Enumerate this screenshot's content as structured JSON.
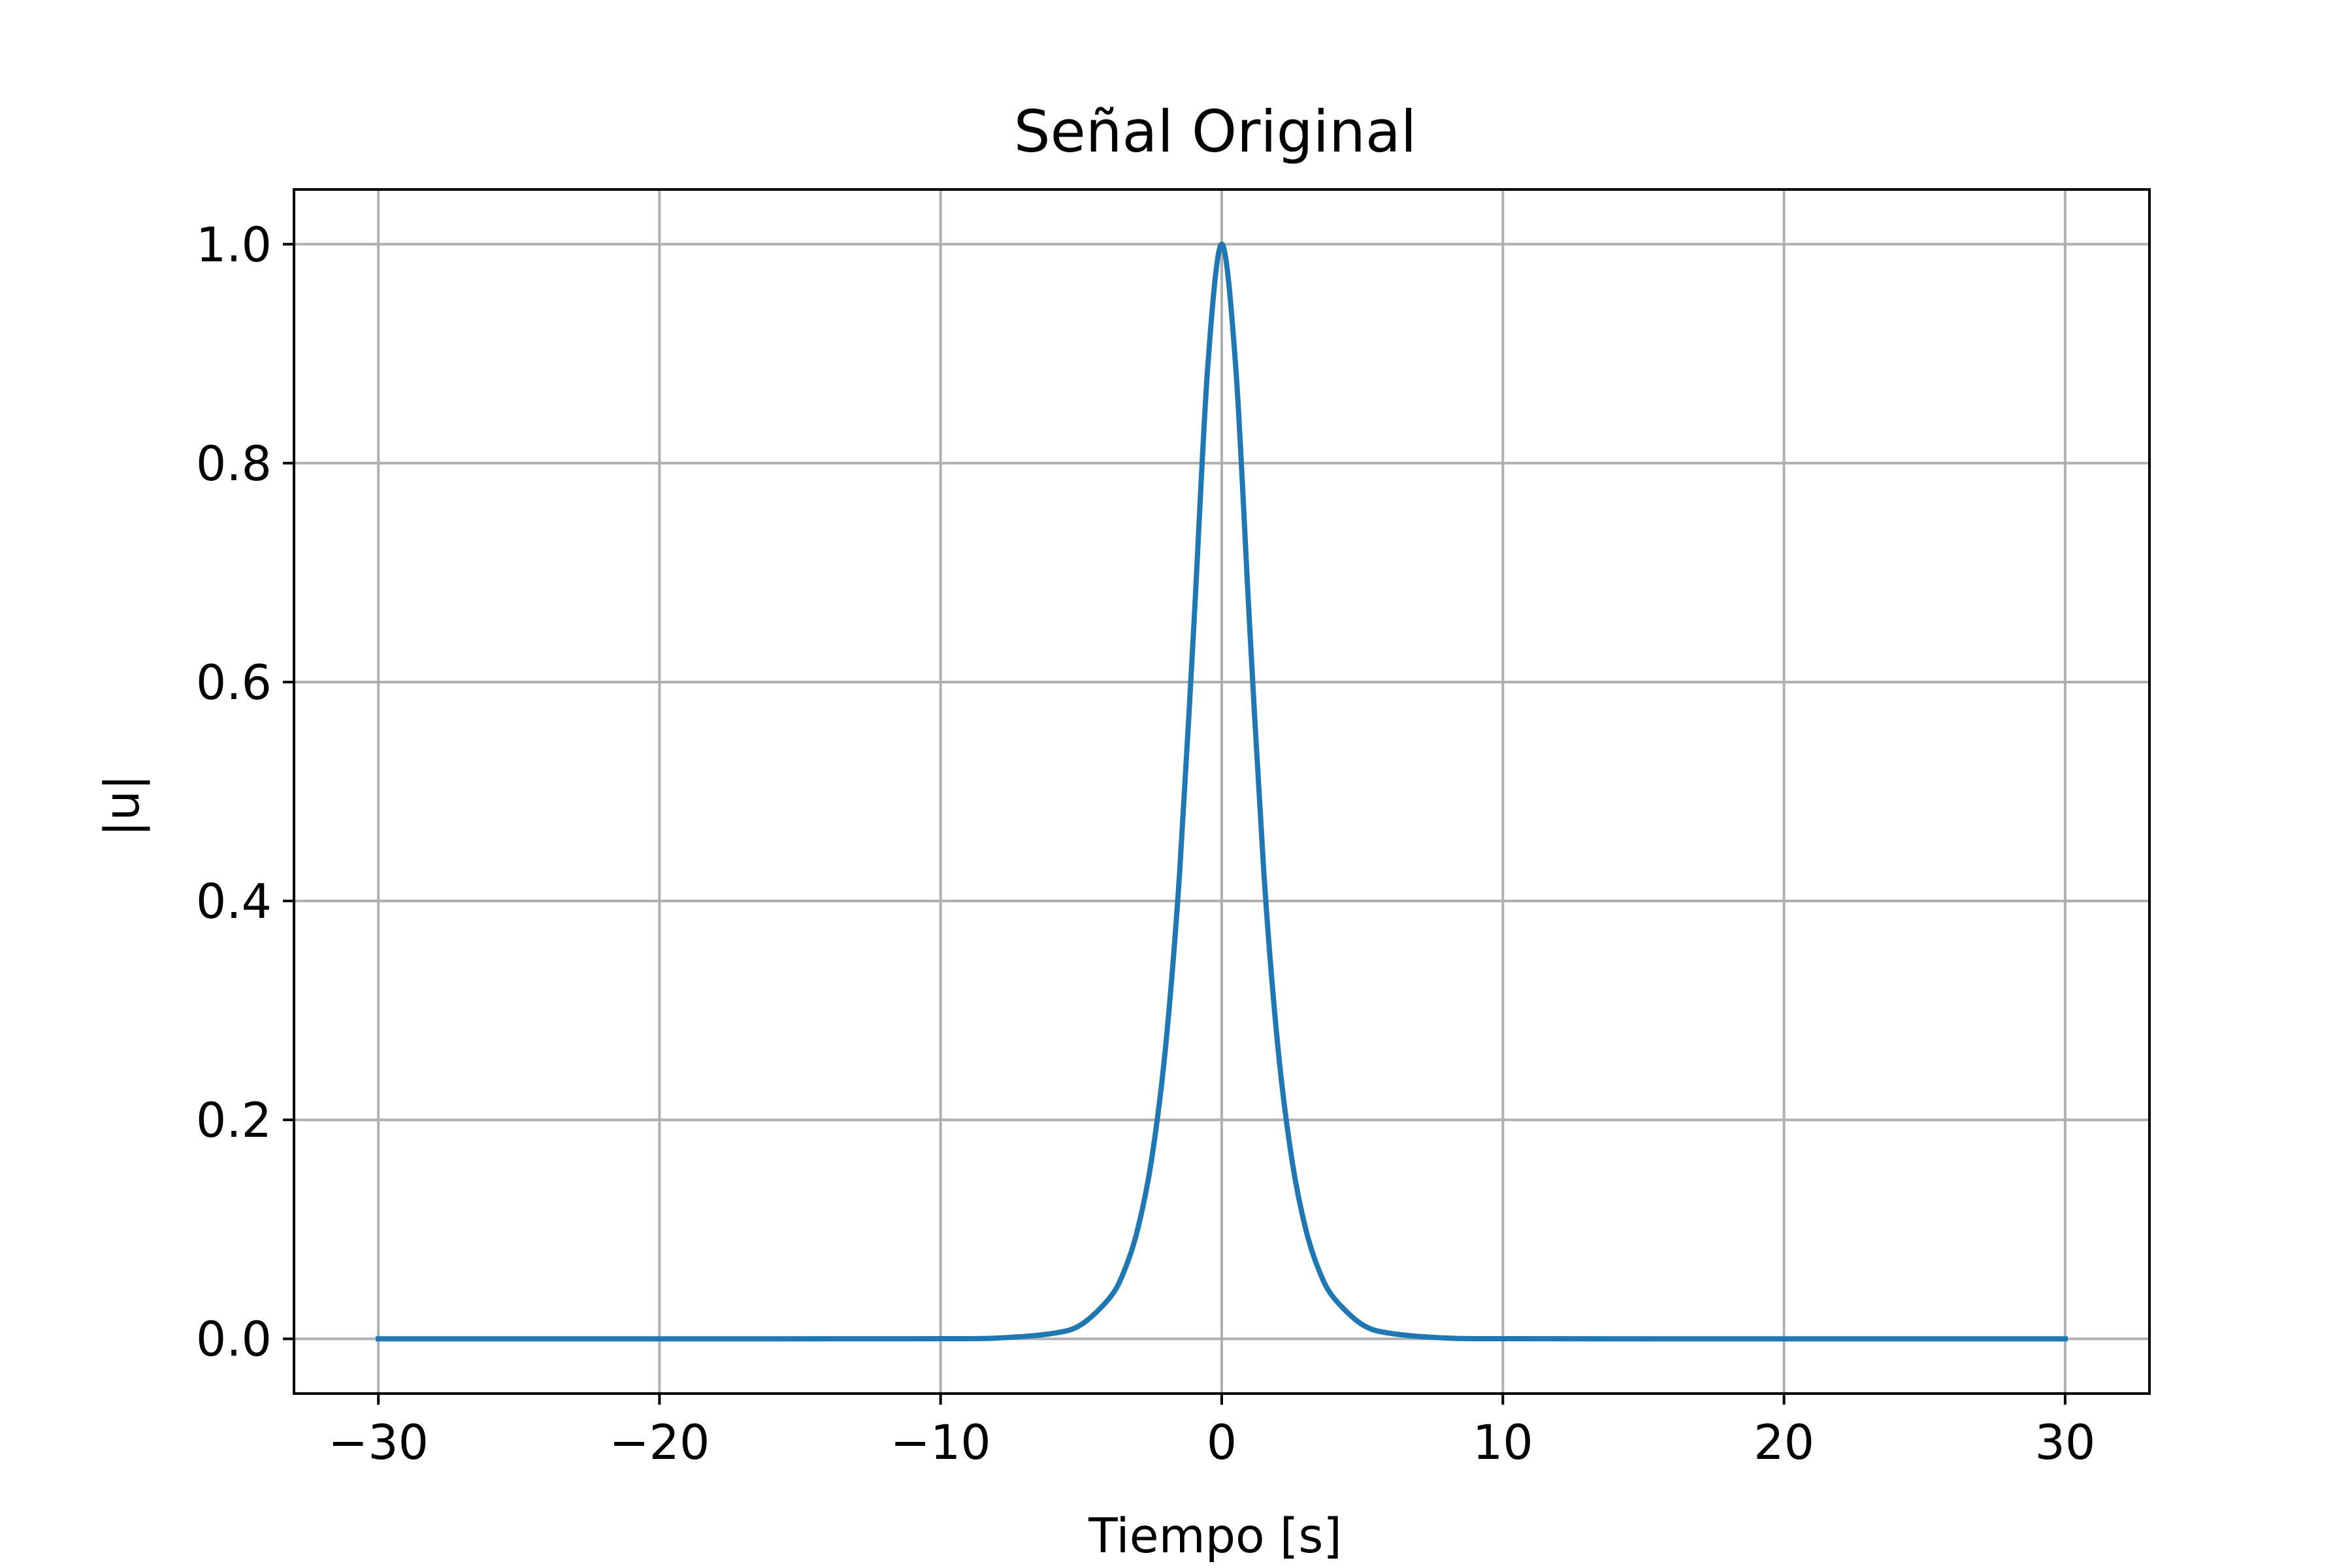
{
  "chart_data": {
    "type": "line",
    "title": "Señal Original",
    "xlabel": "Tiempo [s]",
    "ylabel": "|u|",
    "xlim": [
      -33,
      33
    ],
    "ylim": [
      -0.05,
      1.05
    ],
    "xticks": [
      -30,
      -20,
      -10,
      0,
      10,
      20,
      30
    ],
    "xtick_labels": [
      "−30",
      "−20",
      "−10",
      "0",
      "10",
      "20",
      "30"
    ],
    "yticks": [
      0.0,
      0.2,
      0.4,
      0.6,
      0.8,
      1.0
    ],
    "ytick_labels": [
      "0.0",
      "0.2",
      "0.4",
      "0.6",
      "0.8",
      "1.0"
    ],
    "grid": true,
    "series": [
      {
        "color": "#1f77b4",
        "x": [
          -30,
          -20,
          -10,
          -8,
          -6,
          -5,
          -4,
          -3.5,
          -3,
          -2.5,
          -2,
          -1.5,
          -1,
          -0.5,
          0,
          0.5,
          1,
          1.5,
          2,
          2.5,
          3,
          3.5,
          4,
          5,
          6,
          8,
          10,
          20,
          30
        ],
        "y": [
          0.0,
          0.0,
          0.0001,
          0.0007,
          0.005,
          0.013,
          0.037,
          0.06,
          0.099,
          0.163,
          0.266,
          0.425,
          0.648,
          0.887,
          1.0,
          0.887,
          0.648,
          0.425,
          0.266,
          0.163,
          0.099,
          0.06,
          0.037,
          0.013,
          0.005,
          0.0007,
          0.0001,
          0.0,
          0.0
        ]
      }
    ]
  }
}
